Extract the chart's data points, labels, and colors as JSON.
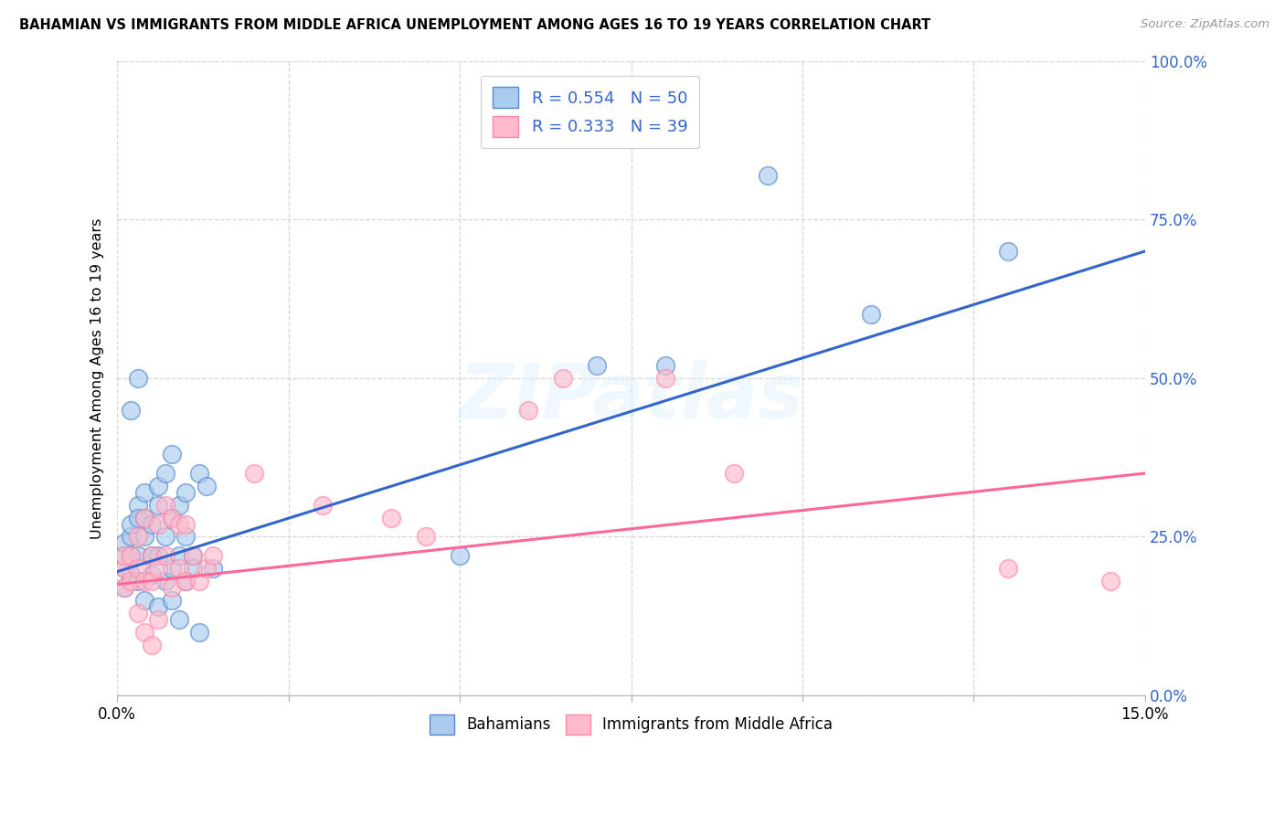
{
  "title": "BAHAMIAN VS IMMIGRANTS FROM MIDDLE AFRICA UNEMPLOYMENT AMONG AGES 16 TO 19 YEARS CORRELATION CHART",
  "source": "Source: ZipAtlas.com",
  "ylabel": "Unemployment Among Ages 16 to 19 years",
  "xlim": [
    0.0,
    0.15
  ],
  "ylim": [
    0.0,
    1.0
  ],
  "xticks": [
    0.0,
    0.025,
    0.05,
    0.075,
    0.1,
    0.125,
    0.15
  ],
  "yticks": [
    0.0,
    0.25,
    0.5,
    0.75,
    1.0
  ],
  "ytick_labels_right": [
    "0.0%",
    "25.0%",
    "50.0%",
    "75.0%",
    "100.0%"
  ],
  "R_blue": 0.554,
  "N_blue": 50,
  "R_pink": 0.333,
  "N_pink": 39,
  "blue_fill": "#AACCEE",
  "pink_fill": "#FFBBCC",
  "blue_edge": "#5588CC",
  "pink_edge": "#FF88AA",
  "blue_line": "#3366CC",
  "pink_line": "#FF6699",
  "legend_text_color": "#3366CC",
  "grid_color": "#CCCCCC",
  "bg": "#FFFFFF",
  "watermark": "ZIPatlas",
  "blue_line_x0": 0.0,
  "blue_line_y0": 0.195,
  "blue_line_x1": 0.15,
  "blue_line_y1": 0.7,
  "pink_line_x0": 0.0,
  "pink_line_y0": 0.175,
  "pink_line_x1": 0.15,
  "pink_line_y1": 0.35,
  "blue_scatter_x": [
    0.001,
    0.001,
    0.001,
    0.001,
    0.002,
    0.002,
    0.002,
    0.002,
    0.003,
    0.003,
    0.003,
    0.003,
    0.004,
    0.004,
    0.004,
    0.005,
    0.005,
    0.005,
    0.006,
    0.006,
    0.006,
    0.007,
    0.007,
    0.007,
    0.008,
    0.008,
    0.008,
    0.009,
    0.009,
    0.01,
    0.01,
    0.011,
    0.012,
    0.013,
    0.014,
    0.003,
    0.002,
    0.004,
    0.006,
    0.008,
    0.009,
    0.01,
    0.011,
    0.012,
    0.05,
    0.07,
    0.08,
    0.095,
    0.11,
    0.13
  ],
  "blue_scatter_y": [
    0.2,
    0.22,
    0.24,
    0.17,
    0.25,
    0.22,
    0.19,
    0.27,
    0.3,
    0.28,
    0.18,
    0.22,
    0.32,
    0.28,
    0.25,
    0.27,
    0.22,
    0.19,
    0.33,
    0.3,
    0.22,
    0.35,
    0.25,
    0.18,
    0.38,
    0.28,
    0.2,
    0.3,
    0.22,
    0.32,
    0.25,
    0.22,
    0.35,
    0.33,
    0.2,
    0.5,
    0.45,
    0.15,
    0.14,
    0.15,
    0.12,
    0.18,
    0.2,
    0.1,
    0.22,
    0.52,
    0.52,
    0.82,
    0.6,
    0.7
  ],
  "pink_scatter_x": [
    0.001,
    0.001,
    0.001,
    0.002,
    0.002,
    0.003,
    0.003,
    0.004,
    0.004,
    0.005,
    0.005,
    0.006,
    0.006,
    0.007,
    0.007,
    0.008,
    0.008,
    0.009,
    0.009,
    0.01,
    0.01,
    0.011,
    0.012,
    0.013,
    0.014,
    0.003,
    0.004,
    0.005,
    0.006,
    0.02,
    0.03,
    0.04,
    0.045,
    0.06,
    0.065,
    0.08,
    0.09,
    0.13,
    0.145
  ],
  "pink_scatter_y": [
    0.2,
    0.17,
    0.22,
    0.22,
    0.18,
    0.25,
    0.2,
    0.28,
    0.18,
    0.22,
    0.18,
    0.27,
    0.2,
    0.3,
    0.22,
    0.28,
    0.17,
    0.27,
    0.2,
    0.27,
    0.18,
    0.22,
    0.18,
    0.2,
    0.22,
    0.13,
    0.1,
    0.08,
    0.12,
    0.35,
    0.3,
    0.28,
    0.25,
    0.45,
    0.5,
    0.5,
    0.35,
    0.2,
    0.18
  ]
}
